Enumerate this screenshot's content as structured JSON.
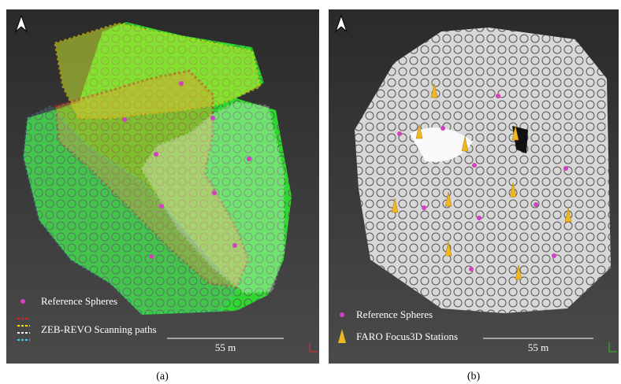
{
  "panels": [
    {
      "legend": [
        "Reference Spheres",
        "ZEB-REVO Scanning paths"
      ],
      "scale": "55 m",
      "caption": "(a)"
    },
    {
      "legend": [
        "Reference Spheres",
        "FARO Focus3D Stations"
      ],
      "scale": "55 m",
      "caption": "(b)"
    }
  ]
}
